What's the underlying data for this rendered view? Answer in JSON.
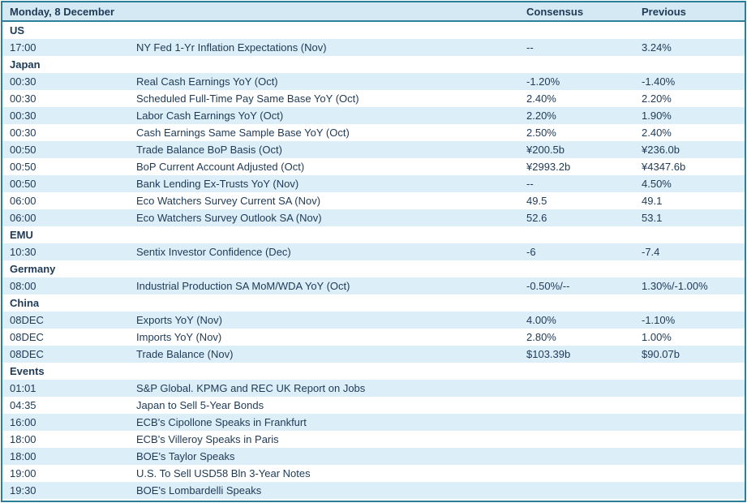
{
  "colors": {
    "border_teal": "#2B7F98",
    "header_bg": "#D4E9F4",
    "row_shaded_bg": "#DCEEF8",
    "row_plain_bg": "#FFFFFF",
    "text_navy": "#1E3A56"
  },
  "header": {
    "date_label": "Monday, 8 December",
    "consensus_label": "Consensus",
    "previous_label": "Previous"
  },
  "rows": [
    {
      "type": "section",
      "label": "US"
    },
    {
      "type": "data",
      "time": "17:00",
      "event": "NY Fed 1-Yr Inflation Expectations (Nov)",
      "consensus": "--",
      "previous": "3.24%"
    },
    {
      "type": "section",
      "label": "Japan"
    },
    {
      "type": "data",
      "time": "00:30",
      "event": "Real Cash Earnings YoY (Oct)",
      "consensus": "-1.20%",
      "previous": "-1.40%"
    },
    {
      "type": "data",
      "time": "00:30",
      "event": "Scheduled Full-Time Pay Same Base YoY (Oct)",
      "consensus": "2.40%",
      "previous": "2.20%"
    },
    {
      "type": "data",
      "time": "00:30",
      "event": "Labor Cash Earnings YoY (Oct)",
      "consensus": "2.20%",
      "previous": "1.90%"
    },
    {
      "type": "data",
      "time": "00:30",
      "event": "Cash Earnings Same Sample Base YoY (Oct)",
      "consensus": "2.50%",
      "previous": "2.40%"
    },
    {
      "type": "data",
      "time": "00:50",
      "event": "Trade Balance BoP Basis (Oct)",
      "consensus": "¥200.5b",
      "previous": "¥236.0b"
    },
    {
      "type": "data",
      "time": "00:50",
      "event": "BoP Current Account Adjusted (Oct)",
      "consensus": "¥2993.2b",
      "previous": "¥4347.6b"
    },
    {
      "type": "data",
      "time": "00:50",
      "event": "Bank Lending Ex-Trusts YoY (Nov)",
      "consensus": "--",
      "previous": "4.50%"
    },
    {
      "type": "data",
      "time": "06:00",
      "event": "Eco Watchers Survey Current SA (Nov)",
      "consensus": "49.5",
      "previous": "49.1"
    },
    {
      "type": "data",
      "time": "06:00",
      "event": "Eco Watchers Survey Outlook SA (Nov)",
      "consensus": "52.6",
      "previous": "53.1"
    },
    {
      "type": "section",
      "label": "EMU"
    },
    {
      "type": "data",
      "time": "10:30",
      "event": "Sentix Investor Confidence (Dec)",
      "consensus": "-6",
      "previous": "-7.4"
    },
    {
      "type": "section",
      "label": "Germany"
    },
    {
      "type": "data",
      "time": "08:00",
      "event": "Industrial Production SA MoM/WDA YoY (Oct)",
      "consensus": "-0.50%/--",
      "previous": "1.30%/-1.00%"
    },
    {
      "type": "section",
      "label": "China"
    },
    {
      "type": "data",
      "time": "08DEC",
      "event": "Exports YoY (Nov)",
      "consensus": "4.00%",
      "previous": "-1.10%"
    },
    {
      "type": "data",
      "time": "08DEC",
      "event": "Imports YoY (Nov)",
      "consensus": "2.80%",
      "previous": "1.00%"
    },
    {
      "type": "data",
      "time": "08DEC",
      "event": "Trade Balance (Nov)",
      "consensus": "$103.39b",
      "previous": "$90.07b"
    },
    {
      "type": "section",
      "label": "Events"
    },
    {
      "type": "data",
      "time": "01:01",
      "event": "S&P Global. KPMG and REC UK Report on Jobs",
      "consensus": "",
      "previous": ""
    },
    {
      "type": "data",
      "time": "04:35",
      "event": "Japan to Sell 5-Year Bonds",
      "consensus": "",
      "previous": ""
    },
    {
      "type": "data",
      "time": "16:00",
      "event": "ECB's Cipollone Speaks in Frankfurt",
      "consensus": "",
      "previous": ""
    },
    {
      "type": "data",
      "time": "18:00",
      "event": "ECB's Villeroy Speaks in Paris",
      "consensus": "",
      "previous": ""
    },
    {
      "type": "data",
      "time": "18:00",
      "event": "BOE's Taylor Speaks",
      "consensus": "",
      "previous": ""
    },
    {
      "type": "data",
      "time": "19:00",
      "event": "U.S. To Sell USD58 Bln 3-Year Notes",
      "consensus": "",
      "previous": ""
    },
    {
      "type": "data",
      "time": "19:30",
      "event": "BOE's Lombardelli Speaks",
      "consensus": "",
      "previous": ""
    }
  ]
}
